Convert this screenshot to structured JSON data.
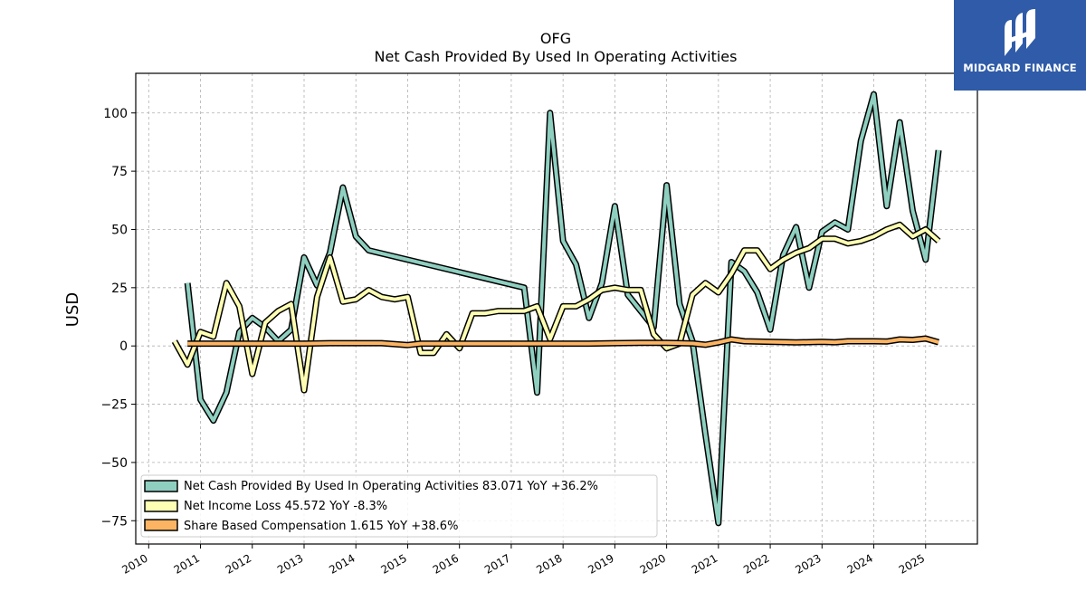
{
  "chart_data": {
    "type": "line",
    "title": "OFG",
    "subtitle": "Net Cash Provided By Used In Operating Activities",
    "ylabel": "USD",
    "xlabel": "",
    "xlim": [
      2009.75,
      2026.0
    ],
    "ylim": [
      -85,
      117
    ],
    "grid": true,
    "legend_position": "lower-left",
    "x_ticks": [
      2010,
      2011,
      2012,
      2013,
      2014,
      2015,
      2016,
      2017,
      2018,
      2019,
      2020,
      2021,
      2022,
      2023,
      2024,
      2025
    ],
    "y_ticks": [
      -75,
      -50,
      -25,
      0,
      25,
      50,
      75,
      100
    ],
    "y_tick_labels": [
      "−75",
      "−50",
      "−25",
      "0",
      "25",
      "50",
      "75",
      "100"
    ],
    "series": [
      {
        "name": "Net Cash Provided By Used In Operating Activities",
        "legend_label": "Net Cash Provided By Used In Operating Activities  83.071 YoY +36.2%",
        "color": "#8ecfc0",
        "points": [
          [
            2010.75,
            27
          ],
          [
            2011.0,
            -23
          ],
          [
            2011.25,
            -32
          ],
          [
            2011.5,
            -20
          ],
          [
            2011.75,
            6
          ],
          [
            2012.0,
            12
          ],
          [
            2012.25,
            8
          ],
          [
            2012.5,
            2
          ],
          [
            2012.75,
            7
          ],
          [
            2013.0,
            38
          ],
          [
            2013.25,
            26
          ],
          [
            2013.5,
            40
          ],
          [
            2013.75,
            68
          ],
          [
            2014.0,
            47
          ],
          [
            2014.25,
            41
          ],
          [
            2017.25,
            25
          ],
          [
            2017.5,
            -20
          ],
          [
            2017.75,
            100
          ],
          [
            2018.0,
            45
          ],
          [
            2018.25,
            35
          ],
          [
            2018.5,
            12
          ],
          [
            2018.75,
            27
          ],
          [
            2019.0,
            60
          ],
          [
            2019.25,
            22
          ],
          [
            2019.5,
            15
          ],
          [
            2019.75,
            8
          ],
          [
            2020.0,
            69
          ],
          [
            2020.25,
            18
          ],
          [
            2020.5,
            2
          ],
          [
            2020.75,
            -38
          ],
          [
            2021.0,
            -76
          ],
          [
            2021.25,
            36
          ],
          [
            2021.5,
            32
          ],
          [
            2021.75,
            23
          ],
          [
            2022.0,
            7
          ],
          [
            2022.25,
            39
          ],
          [
            2022.5,
            51
          ],
          [
            2022.75,
            25
          ],
          [
            2023.0,
            49
          ],
          [
            2023.25,
            53
          ],
          [
            2023.5,
            50
          ],
          [
            2023.75,
            88
          ],
          [
            2024.0,
            108
          ],
          [
            2024.25,
            60
          ],
          [
            2024.5,
            96
          ],
          [
            2024.75,
            58
          ],
          [
            2025.0,
            37
          ],
          [
            2025.25,
            84
          ]
        ]
      },
      {
        "name": "Net Income Loss",
        "legend_label": "Net Income Loss  45.572 YoY -8.3%",
        "color": "#ffffb3",
        "points": [
          [
            2010.5,
            2
          ],
          [
            2010.75,
            -8
          ],
          [
            2011.0,
            6
          ],
          [
            2011.25,
            4
          ],
          [
            2011.5,
            27
          ],
          [
            2011.75,
            17
          ],
          [
            2012.0,
            -12
          ],
          [
            2012.25,
            10
          ],
          [
            2012.5,
            15
          ],
          [
            2012.75,
            18
          ],
          [
            2013.0,
            -19
          ],
          [
            2013.25,
            21
          ],
          [
            2013.5,
            38
          ],
          [
            2013.75,
            19
          ],
          [
            2014.0,
            20
          ],
          [
            2014.25,
            24
          ],
          [
            2014.5,
            21
          ],
          [
            2014.75,
            20
          ],
          [
            2015.0,
            21
          ],
          [
            2015.25,
            -3
          ],
          [
            2015.5,
            -3
          ],
          [
            2015.75,
            5
          ],
          [
            2016.0,
            -1
          ],
          [
            2016.25,
            14
          ],
          [
            2016.5,
            14
          ],
          [
            2016.75,
            15
          ],
          [
            2017.0,
            15
          ],
          [
            2017.25,
            15
          ],
          [
            2017.5,
            17
          ],
          [
            2017.75,
            3
          ],
          [
            2018.0,
            17
          ],
          [
            2018.25,
            17
          ],
          [
            2018.5,
            20
          ],
          [
            2018.75,
            24
          ],
          [
            2019.0,
            25
          ],
          [
            2019.25,
            24
          ],
          [
            2019.5,
            24
          ],
          [
            2019.75,
            5
          ],
          [
            2020.0,
            -1
          ],
          [
            2020.25,
            1
          ],
          [
            2020.5,
            22
          ],
          [
            2020.75,
            27
          ],
          [
            2021.0,
            23
          ],
          [
            2021.25,
            31
          ],
          [
            2021.5,
            41
          ],
          [
            2021.75,
            41
          ],
          [
            2022.0,
            33
          ],
          [
            2022.25,
            37
          ],
          [
            2022.5,
            40
          ],
          [
            2022.75,
            42
          ],
          [
            2023.0,
            46
          ],
          [
            2023.25,
            46
          ],
          [
            2023.5,
            44
          ],
          [
            2023.75,
            45
          ],
          [
            2024.0,
            47
          ],
          [
            2024.25,
            50
          ],
          [
            2024.5,
            52
          ],
          [
            2024.75,
            47
          ],
          [
            2025.0,
            50
          ],
          [
            2025.25,
            45
          ]
        ]
      },
      {
        "name": "Share Based Compensation",
        "legend_label": "Share Based Compensation  1.615 YoY +38.6%",
        "color": "#fdb462",
        "points": [
          [
            2010.75,
            1
          ],
          [
            2011.0,
            1
          ],
          [
            2011.5,
            1
          ],
          [
            2012.0,
            1
          ],
          [
            2012.5,
            1
          ],
          [
            2013.0,
            1
          ],
          [
            2013.5,
            1.2
          ],
          [
            2014.0,
            1.2
          ],
          [
            2014.5,
            1.2
          ],
          [
            2015.0,
            0.4
          ],
          [
            2015.25,
            1
          ],
          [
            2016.0,
            1
          ],
          [
            2016.5,
            1
          ],
          [
            2017.0,
            1
          ],
          [
            2017.5,
            1
          ],
          [
            2018.0,
            1
          ],
          [
            2018.5,
            1
          ],
          [
            2019.0,
            1.2
          ],
          [
            2019.5,
            1.3
          ],
          [
            2020.0,
            1.3
          ],
          [
            2020.5,
            1.1
          ],
          [
            2020.75,
            0.5
          ],
          [
            2021.0,
            1.5
          ],
          [
            2021.25,
            2.8
          ],
          [
            2021.5,
            2
          ],
          [
            2022.0,
            1.8
          ],
          [
            2022.5,
            1.5
          ],
          [
            2023.0,
            1.8
          ],
          [
            2023.25,
            1.6
          ],
          [
            2023.5,
            2
          ],
          [
            2024.0,
            2
          ],
          [
            2024.25,
            1.9
          ],
          [
            2024.5,
            2.8
          ],
          [
            2024.75,
            2.6
          ],
          [
            2025.0,
            3.2
          ],
          [
            2025.25,
            1.6
          ]
        ]
      }
    ]
  },
  "branding": {
    "logo_text": "MIDGARD FINANCE",
    "logo_color": "#2f5ba8"
  }
}
